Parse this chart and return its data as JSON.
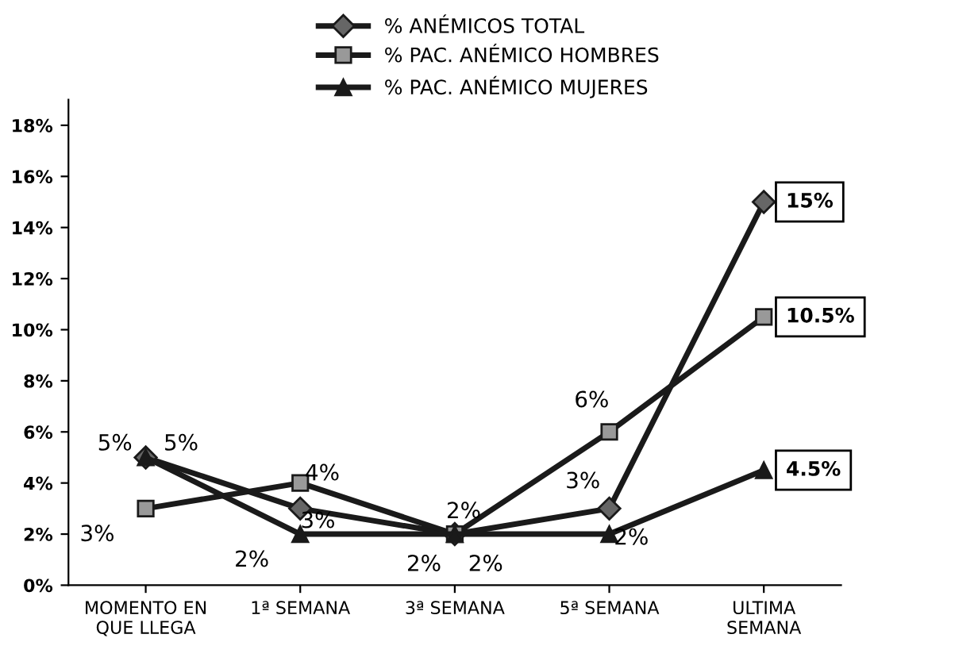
{
  "chart_data": {
    "type": "line",
    "categories": [
      "MOMENTO EN\nQUE LLEGA",
      "1ª SEMANA",
      "3ª SEMANA",
      "5ª SEMANA",
      "ULTIMA\nSEMANA"
    ],
    "series": [
      {
        "name": "% ANÉMICOS TOTAL",
        "color": "#1a1a1a",
        "marker": "diamond",
        "values": [
          5,
          3,
          2,
          3,
          15
        ],
        "value_labels": [
          "5%",
          "3%",
          "2%",
          "3%",
          "15%"
        ]
      },
      {
        "name": "% PAC. ANÉMICO HOMBRES",
        "color": "#1a1a1a",
        "marker": "square",
        "values": [
          3,
          4,
          2,
          6,
          10.5
        ],
        "value_labels": [
          "3%",
          "4%",
          "2%",
          "6%",
          "10.5%"
        ]
      },
      {
        "name": "% PAC. ANÉMICO MUJERES",
        "color": "#1a1a1a",
        "marker": "triangle",
        "values": [
          5,
          2,
          2,
          2,
          4.5
        ],
        "value_labels": [
          "5%",
          "2%",
          "2%",
          "2%",
          "4.5%"
        ]
      }
    ],
    "ylim": [
      0,
      19
    ],
    "yticks": [
      {
        "value": 0,
        "label": "0%"
      },
      {
        "value": 2,
        "label": "2%"
      },
      {
        "value": 4,
        "label": "4%"
      },
      {
        "value": 6,
        "label": "6%"
      },
      {
        "value": 8,
        "label": "8%"
      },
      {
        "value": 10,
        "label": "10%"
      },
      {
        "value": 12,
        "label": "12%"
      },
      {
        "value": 14,
        "label": "14%"
      },
      {
        "value": 16,
        "label": "16%"
      },
      {
        "value": 18,
        "label": "18%"
      }
    ],
    "grid": false,
    "legend": "top",
    "line_style": "solid"
  }
}
